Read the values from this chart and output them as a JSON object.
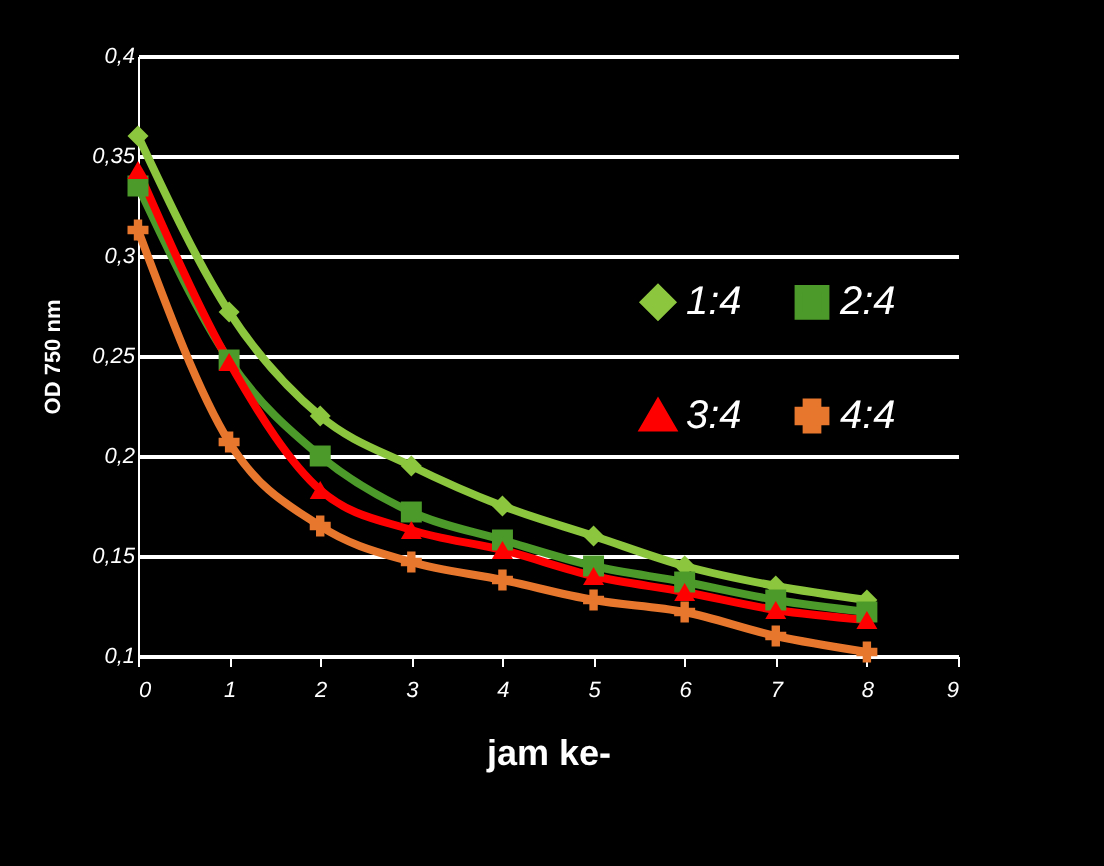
{
  "chart_data": {
    "type": "line",
    "xlabel": "jam ke-",
    "ylabel": "OD 750 nm",
    "x": [
      0,
      1,
      2,
      3,
      4,
      5,
      6,
      7,
      8
    ],
    "series": [
      {
        "name": "1:4",
        "color": "#8cc63e",
        "marker": "diamond",
        "values": [
          0.36,
          0.272,
          0.22,
          0.195,
          0.175,
          0.16,
          0.145,
          0.135,
          0.128
        ]
      },
      {
        "name": "2:4",
        "color": "#4c9a2a",
        "marker": "square",
        "values": [
          0.335,
          0.248,
          0.2,
          0.172,
          0.158,
          0.145,
          0.137,
          0.128,
          0.122
        ]
      },
      {
        "name": "3:4",
        "color": "#ff0000",
        "marker": "triangle",
        "values": [
          0.343,
          0.247,
          0.183,
          0.163,
          0.153,
          0.14,
          0.132,
          0.123,
          0.118
        ]
      },
      {
        "name": "4:4",
        "color": "#e8772e",
        "marker": "cross",
        "values": [
          0.313,
          0.207,
          0.165,
          0.147,
          0.138,
          0.128,
          0.122,
          0.11,
          0.102
        ]
      }
    ],
    "xlim": [
      0,
      9
    ],
    "xticks": [
      0,
      1,
      2,
      3,
      4,
      5,
      6,
      7,
      8,
      9
    ],
    "ylim": [
      0.1,
      0.4
    ],
    "yticks": [
      {
        "value": 0.1,
        "label": "0,1"
      },
      {
        "value": 0.15,
        "label": "0,15"
      },
      {
        "value": 0.2,
        "label": "0,2"
      },
      {
        "value": 0.25,
        "label": "0,25"
      },
      {
        "value": 0.3,
        "label": "0,3"
      },
      {
        "value": 0.35,
        "label": "0,35"
      },
      {
        "value": 0.4,
        "label": "0,4"
      }
    ],
    "grid": "y",
    "legend": "right",
    "line_style": "solid"
  }
}
